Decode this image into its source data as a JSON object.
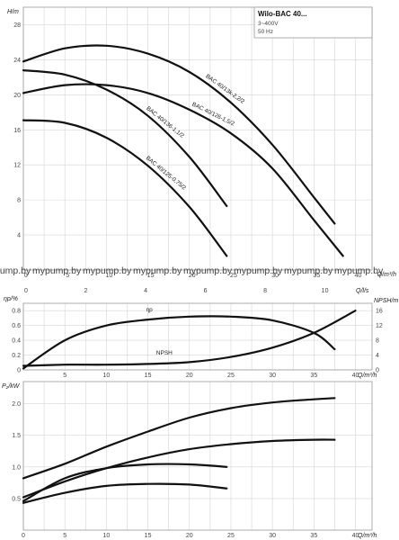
{
  "legend": {
    "title": "Wilo-BAC 40...",
    "voltage": "3~400V",
    "frequency": "50 Hz"
  },
  "watermark": {
    "text": "mypump.by",
    "count": 8
  },
  "chart_data": [
    {
      "type": "line",
      "ylabel": "H/m",
      "xlabel": "Q/m³/h",
      "xlabel_secondary": "Q/l/s",
      "xlim": [
        0,
        42
      ],
      "ylim": [
        0,
        30
      ],
      "yticks": [
        4,
        8,
        12,
        16,
        20,
        24,
        28
      ],
      "xticks": [
        0,
        5,
        10,
        15,
        20,
        25,
        30,
        35,
        40
      ],
      "xticks_secondary": [
        0,
        2,
        4,
        6,
        8,
        10
      ],
      "grid": true,
      "series": [
        {
          "name": "BAC 40/13k-2,2/2",
          "x": [
            0,
            5,
            10,
            15,
            20,
            25,
            30,
            35,
            37.5
          ],
          "y": [
            23.8,
            25.3,
            25.6,
            24.7,
            22.6,
            19.1,
            14.3,
            8.3,
            5.3
          ]
        },
        {
          "name": "BAC 40/126-1,5/2",
          "x": [
            0,
            5,
            10,
            15,
            20,
            25,
            30,
            35,
            38.5
          ],
          "y": [
            20.2,
            21.1,
            21.1,
            20.2,
            18.3,
            15.6,
            11.6,
            5.7,
            1.6
          ]
        },
        {
          "name": "BAC 40/136-1,1/2",
          "x": [
            0,
            5,
            10,
            15,
            20,
            24.5
          ],
          "y": [
            22.8,
            22.3,
            20.6,
            17.6,
            12.9,
            7.3
          ]
        },
        {
          "name": "BAC 40/125-0,75/2",
          "x": [
            0,
            5,
            10,
            15,
            20,
            24.5
          ],
          "y": [
            17.1,
            16.8,
            15.1,
            11.9,
            7.2,
            1.6
          ]
        }
      ]
    },
    {
      "type": "line",
      "ylabel": "ηp/%",
      "ylabel_right": "NPSH/m",
      "xlabel": "Q/m³/h",
      "xlim": [
        0,
        42
      ],
      "ylim": [
        0,
        0.9
      ],
      "ylim_right": [
        0,
        18
      ],
      "yticks": [
        0,
        0.2,
        0.4,
        0.6,
        0.8
      ],
      "yticks_right": [
        0,
        4,
        8,
        12,
        16
      ],
      "xticks": [
        5,
        10,
        15,
        20,
        25,
        30,
        35,
        40
      ],
      "grid": true,
      "series": [
        {
          "name": "ηp",
          "axis": "left",
          "x": [
            0,
            5,
            10,
            15,
            20,
            25,
            30,
            35,
            37.5
          ],
          "y": [
            0.02,
            0.4,
            0.6,
            0.68,
            0.72,
            0.72,
            0.67,
            0.5,
            0.28
          ]
        },
        {
          "name": "NPSH",
          "axis": "right",
          "x": [
            0,
            5,
            10,
            15,
            20,
            25,
            30,
            35,
            40
          ],
          "y": [
            1.1,
            1.4,
            1.4,
            1.6,
            2.1,
            3.5,
            6.0,
            10.0,
            16.0
          ]
        }
      ]
    },
    {
      "type": "line",
      "ylabel": "P₂/kW",
      "xlabel": "Q/m³/h",
      "xlim": [
        0,
        42
      ],
      "ylim": [
        0,
        2.35
      ],
      "yticks": [
        0.5,
        1.0,
        1.5,
        2.0
      ],
      "xticks": [
        0,
        5,
        10,
        15,
        20,
        25,
        30,
        35,
        40
      ],
      "grid": true,
      "series": [
        {
          "x": [
            0,
            5,
            10,
            15,
            20,
            25,
            30,
            35,
            37.5
          ],
          "y": [
            0.82,
            1.05,
            1.32,
            1.56,
            1.78,
            1.93,
            2.02,
            2.07,
            2.09
          ]
        },
        {
          "x": [
            0,
            5,
            10,
            15,
            20,
            25,
            30,
            35,
            37.5
          ],
          "y": [
            0.52,
            0.77,
            0.98,
            1.15,
            1.28,
            1.36,
            1.41,
            1.43,
            1.43
          ]
        },
        {
          "x": [
            0,
            5,
            10,
            15,
            20,
            24.5
          ],
          "y": [
            0.46,
            0.82,
            0.98,
            1.04,
            1.04,
            1.0
          ]
        },
        {
          "x": [
            0,
            5,
            10,
            15,
            20,
            24.5
          ],
          "y": [
            0.43,
            0.59,
            0.7,
            0.73,
            0.72,
            0.66
          ]
        }
      ]
    }
  ]
}
